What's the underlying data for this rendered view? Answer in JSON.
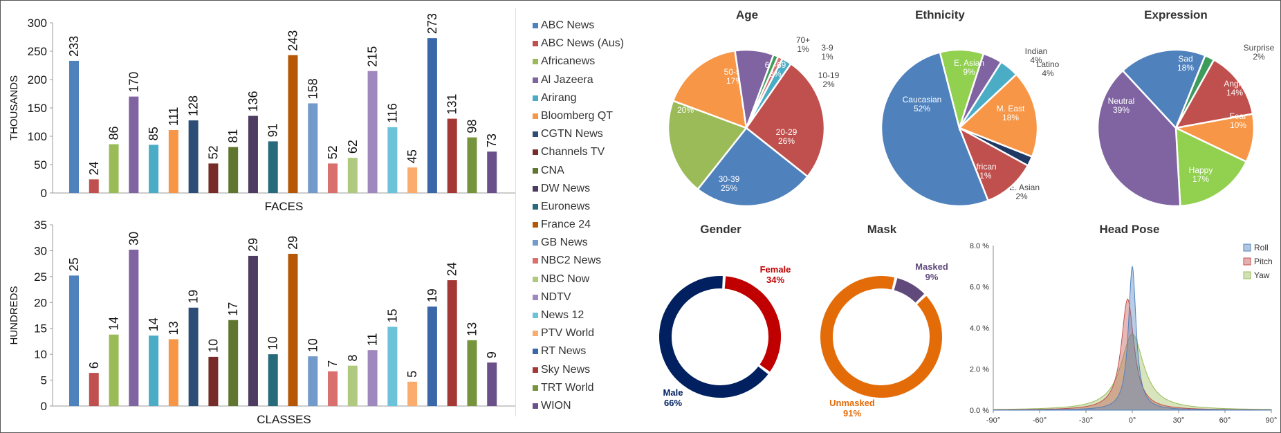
{
  "legend": {
    "items": [
      {
        "label": "ABC News",
        "color": "#4f81bd"
      },
      {
        "label": "ABC News (Aus)",
        "color": "#c0504d"
      },
      {
        "label": "Africanews",
        "color": "#9bbb59"
      },
      {
        "label": "Al Jazeera",
        "color": "#8064a2"
      },
      {
        "label": "Arirang",
        "color": "#4bacc6"
      },
      {
        "label": "Bloomberg QT",
        "color": "#f79646"
      },
      {
        "label": "CGTN News",
        "color": "#2c4d75"
      },
      {
        "label": "Channels TV",
        "color": "#772c2a"
      },
      {
        "label": "CNA",
        "color": "#5f7530"
      },
      {
        "label": "DW News",
        "color": "#4d3b62"
      },
      {
        "label": "Euronews",
        "color": "#276a7c"
      },
      {
        "label": "France 24",
        "color": "#b65708"
      },
      {
        "label": "GB News",
        "color": "#729aca"
      },
      {
        "label": "NBC2 News",
        "color": "#d9706d"
      },
      {
        "label": "NBC Now",
        "color": "#afca7f"
      },
      {
        "label": "NDTV",
        "color": "#9f88be"
      },
      {
        "label": "News 12",
        "color": "#6cc2d8"
      },
      {
        "label": "PTV World",
        "color": "#fbab6c"
      },
      {
        "label": "RT News",
        "color": "#3a67a8"
      },
      {
        "label": "Sky News",
        "color": "#a33835"
      },
      {
        "label": "TRT World",
        "color": "#76943c"
      },
      {
        "label": "WION",
        "color": "#6a4f8a"
      }
    ]
  },
  "titles": {
    "age": "Age",
    "ethnicity": "Ethnicity",
    "expression": "Expression",
    "gender": "Gender",
    "mask": "Mask",
    "headpose": "Head Pose"
  },
  "chart_data": [
    {
      "type": "bar",
      "xlabel": "FACES",
      "ylabel": "THOUSANDS",
      "ylim": [
        0,
        300
      ],
      "yticks": [
        0,
        50,
        100,
        150,
        200,
        250,
        300
      ],
      "categories": [
        "ABC News",
        "ABC News (Aus)",
        "Africanews",
        "Al Jazeera",
        "Arirang",
        "Bloomberg QT",
        "CGTN News",
        "Channels TV",
        "CNA",
        "DW News",
        "Euronews",
        "France 24",
        "GB News",
        "NBC2 News",
        "NBC Now",
        "NDTV",
        "News 12",
        "PTV World",
        "RT News",
        "Sky News",
        "TRT World",
        "WION"
      ],
      "values": [
        233,
        24,
        86,
        170,
        85,
        111,
        128,
        52,
        81,
        136,
        91,
        243,
        158,
        52,
        62,
        215,
        116,
        45,
        273,
        131,
        98,
        73
      ]
    },
    {
      "type": "bar",
      "xlabel": "CLASSES",
      "ylabel": "HUNDREDS",
      "ylim": [
        0,
        35
      ],
      "yticks": [
        0,
        5,
        10,
        15,
        20,
        25,
        30,
        35
      ],
      "categories": [
        "ABC News",
        "ABC News (Aus)",
        "Africanews",
        "Al Jazeera",
        "Arirang",
        "Bloomberg QT",
        "CGTN News",
        "Channels TV",
        "CNA",
        "DW News",
        "Euronews",
        "France 24",
        "GB News",
        "NBC2 News",
        "NBC Now",
        "NDTV",
        "News 12",
        "PTV World",
        "RT News",
        "Sky News",
        "TRT World",
        "WION"
      ],
      "values": [
        25,
        6,
        14,
        30,
        14,
        13,
        19,
        10,
        17,
        29,
        10,
        29,
        10,
        7,
        8,
        11,
        15,
        5,
        19,
        24,
        13,
        9
      ],
      "heights": [
        25.2,
        6.4,
        13.8,
        30.2,
        13.6,
        12.9,
        19.0,
        9.5,
        16.6,
        29.0,
        10.0,
        29.4,
        9.6,
        6.7,
        7.8,
        10.8,
        15.3,
        4.7,
        19.2,
        24.3,
        12.7,
        8.4
      ]
    },
    {
      "type": "pie",
      "title": "Age",
      "slices": [
        {
          "label": "3-9",
          "value": 1,
          "color": "#d9706d"
        },
        {
          "label": "10-19",
          "value": 2,
          "color": "#4bacc6"
        },
        {
          "label": "20-29",
          "value": 26,
          "color": "#c0504d"
        },
        {
          "label": "30-39",
          "value": 25,
          "color": "#4f81bd"
        },
        {
          "label": "40-49",
          "value": 20,
          "color": "#9bbb59"
        },
        {
          "label": "50-59",
          "value": 17,
          "color": "#f79646"
        },
        {
          "label": "60-69",
          "value": 8,
          "color": "#8064a2"
        },
        {
          "label": "70+",
          "value": 1,
          "color": "#3d9b5c"
        }
      ]
    },
    {
      "type": "pie",
      "title": "Ethnicity",
      "slices": [
        {
          "label": "Indian",
          "value": 4,
          "color": "#8064a2"
        },
        {
          "label": "Latino",
          "value": 4,
          "color": "#4bacc6"
        },
        {
          "label": "M. East",
          "value": 18,
          "color": "#f79646"
        },
        {
          "label": "SE. Asian",
          "value": 2,
          "color": "#1f3864"
        },
        {
          "label": "African",
          "value": 11,
          "color": "#c0504d"
        },
        {
          "label": "Caucasian",
          "value": 52,
          "color": "#4f81bd"
        },
        {
          "label": "E. Asian",
          "value": 9,
          "color": "#92d050"
        }
      ]
    },
    {
      "type": "pie",
      "title": "Expression",
      "slices": [
        {
          "label": "Surprise",
          "value": 2,
          "color": "#3d9b5c"
        },
        {
          "label": "Angry",
          "value": 14,
          "color": "#c0504d"
        },
        {
          "label": "Fear",
          "value": 10,
          "color": "#f79646"
        },
        {
          "label": "Happy",
          "value": 17,
          "color": "#92d050"
        },
        {
          "label": "Neutral",
          "value": 39,
          "color": "#8064a2"
        },
        {
          "label": "Sad",
          "value": 18,
          "color": "#4f81bd"
        }
      ]
    },
    {
      "type": "donut",
      "title": "Gender",
      "slices": [
        {
          "label": "Female",
          "value": 34,
          "color": "#c00000"
        },
        {
          "label": "Male",
          "value": 66,
          "color": "#002060"
        }
      ]
    },
    {
      "type": "donut",
      "title": "Mask",
      "slices": [
        {
          "label": "Masked",
          "value": 9,
          "color": "#604a7b"
        },
        {
          "label": "Unmasked",
          "value": 91,
          "color": "#e36c09"
        }
      ]
    },
    {
      "type": "area",
      "title": "Head Pose",
      "xlim": [
        -90,
        90
      ],
      "xticks": [
        "-90°",
        "-60°",
        "-30°",
        "0°",
        "30°",
        "60°",
        "90°"
      ],
      "ylim": [
        0,
        8
      ],
      "yticks": [
        "0.0 %",
        "2.0 %",
        "4.0 %",
        "6.0 %",
        "8.0 %"
      ],
      "series": [
        {
          "name": "Roll",
          "color": "#4f81bd",
          "peak": 7.0,
          "center": 0,
          "width": 3
        },
        {
          "name": "Pitch",
          "color": "#c0504d",
          "peak": 5.4,
          "center": -3,
          "width": 5
        },
        {
          "name": "Yaw",
          "color": "#9bbb59",
          "peak": 3.7,
          "center": 0,
          "width": 9
        }
      ]
    }
  ]
}
